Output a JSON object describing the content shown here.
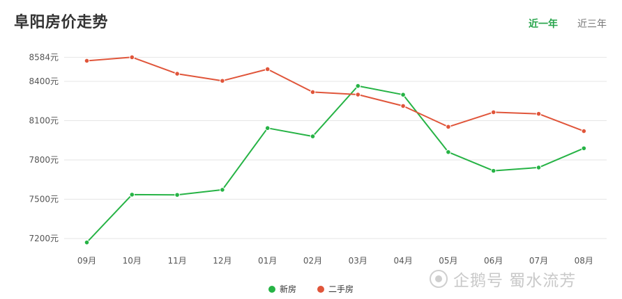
{
  "page_title": "阜阳房价走势",
  "tabs": [
    {
      "label": "近一年",
      "active": true
    },
    {
      "label": "近三年",
      "active": false
    }
  ],
  "colors": {
    "new_house": "#26b345",
    "second_hand": "#e0553a",
    "active_tab": "#26a44a"
  },
  "watermark": {
    "logo_icon": "penguin-logo-icon",
    "text": "企鹅号 蜀水流芳"
  },
  "chart_data": {
    "type": "line",
    "categories": [
      "09月",
      "10月",
      "11月",
      "12月",
      "01月",
      "02月",
      "03月",
      "04月",
      "05月",
      "06月",
      "07月",
      "08月"
    ],
    "ylim": [
      7180,
      8620
    ],
    "yticks": [
      7200,
      7500,
      7800,
      8100,
      8400,
      8584
    ],
    "ytick_labels": [
      "7200元",
      "7500元",
      "7800元",
      "8100元",
      "8400元",
      "8584元"
    ],
    "grid": true,
    "legend_position": "bottom",
    "series": [
      {
        "name": "新房",
        "color": "#26b345",
        "values": [
          7170,
          7535,
          7533,
          7572,
          8043,
          7980,
          8365,
          8298,
          7860,
          7717,
          7742,
          7889
        ]
      },
      {
        "name": "二手房",
        "color": "#e0553a",
        "values": [
          8557,
          8584,
          8458,
          8404,
          8493,
          8318,
          8299,
          8212,
          8053,
          8164,
          8152,
          8020
        ]
      }
    ]
  }
}
